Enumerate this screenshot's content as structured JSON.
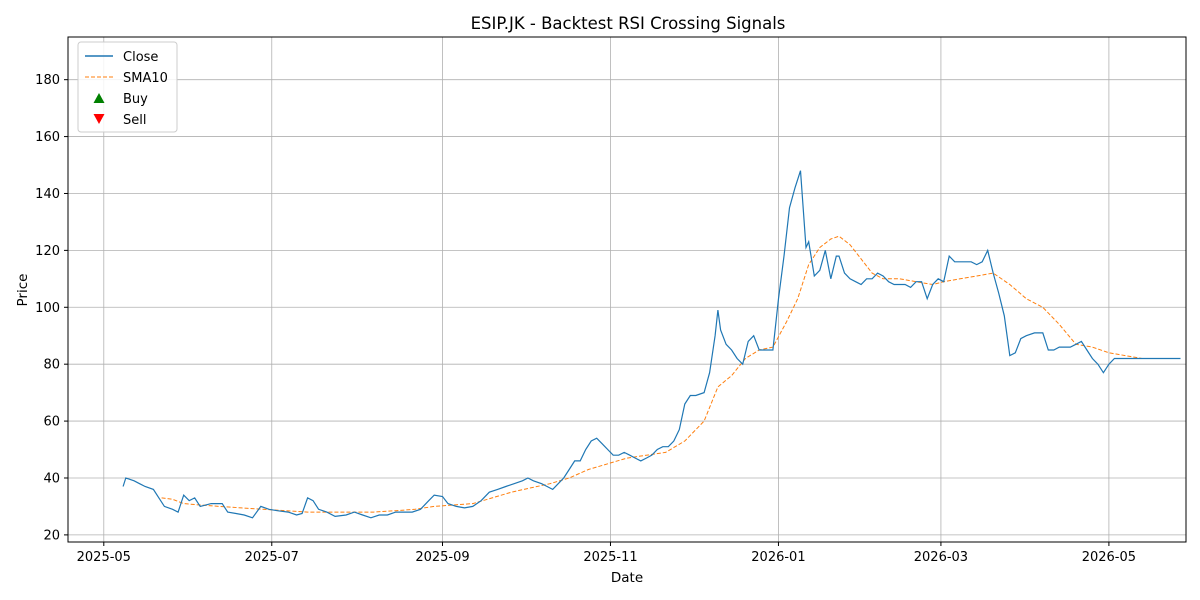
{
  "chart_data": {
    "type": "line",
    "title": "ESIP.JK - Backtest RSI Crossing Signals",
    "xlabel": "Date",
    "ylabel": "Price",
    "xlim": [
      "2025-04-18",
      "2026-05-29"
    ],
    "ylim": [
      17.5,
      195
    ],
    "grid": true,
    "legend_placement": "top-left",
    "x_ticks": [
      "2025-05",
      "2025-07",
      "2025-09",
      "2025-11",
      "2026-01",
      "2026-03",
      "2026-05"
    ],
    "y_ticks": [
      20,
      40,
      60,
      80,
      100,
      120,
      140,
      160,
      180
    ],
    "colors": {
      "close": "#1f77b4",
      "sma": "#ff7f0e",
      "buy": "#008000",
      "sell": "#ff0000"
    },
    "legend": [
      "Close",
      "SMA10",
      "Buy",
      "Sell"
    ],
    "close": [
      [
        "2025-05-08",
        37
      ],
      [
        "2025-05-09",
        40
      ],
      [
        "2025-05-12",
        39
      ],
      [
        "2025-05-14",
        38
      ],
      [
        "2025-05-16",
        37
      ],
      [
        "2025-05-19",
        36
      ],
      [
        "2025-05-21",
        33
      ],
      [
        "2025-05-23",
        30
      ],
      [
        "2025-05-26",
        29
      ],
      [
        "2025-05-28",
        28
      ],
      [
        "2025-05-30",
        34
      ],
      [
        "2025-06-01",
        32
      ],
      [
        "2025-06-03",
        33
      ],
      [
        "2025-06-05",
        30
      ],
      [
        "2025-06-09",
        31
      ],
      [
        "2025-06-13",
        31
      ],
      [
        "2025-06-15",
        28
      ],
      [
        "2025-06-18",
        27.5
      ],
      [
        "2025-06-21",
        27
      ],
      [
        "2025-06-24",
        26
      ],
      [
        "2025-06-27",
        30
      ],
      [
        "2025-06-30",
        29
      ],
      [
        "2025-07-03",
        28.5
      ],
      [
        "2025-07-07",
        28
      ],
      [
        "2025-07-10",
        27
      ],
      [
        "2025-07-12",
        27.5
      ],
      [
        "2025-07-14",
        33
      ],
      [
        "2025-07-16",
        32
      ],
      [
        "2025-07-18",
        29
      ],
      [
        "2025-07-21",
        28
      ],
      [
        "2025-07-24",
        26.5
      ],
      [
        "2025-07-28",
        27
      ],
      [
        "2025-07-31",
        28
      ],
      [
        "2025-08-03",
        27
      ],
      [
        "2025-08-06",
        26
      ],
      [
        "2025-08-09",
        27
      ],
      [
        "2025-08-12",
        27
      ],
      [
        "2025-08-15",
        28
      ],
      [
        "2025-08-18",
        28
      ],
      [
        "2025-08-21",
        28
      ],
      [
        "2025-08-24",
        29
      ],
      [
        "2025-08-27",
        32
      ],
      [
        "2025-08-29",
        34
      ],
      [
        "2025-09-01",
        33.5
      ],
      [
        "2025-09-03",
        31
      ],
      [
        "2025-09-06",
        30
      ],
      [
        "2025-09-09",
        29.5
      ],
      [
        "2025-09-12",
        30
      ],
      [
        "2025-09-15",
        32
      ],
      [
        "2025-09-18",
        35
      ],
      [
        "2025-09-21",
        36
      ],
      [
        "2025-09-24",
        37
      ],
      [
        "2025-09-27",
        38
      ],
      [
        "2025-09-30",
        39
      ],
      [
        "2025-10-02",
        40
      ],
      [
        "2025-10-04",
        39
      ],
      [
        "2025-10-07",
        38
      ],
      [
        "2025-10-09",
        37
      ],
      [
        "2025-10-11",
        36
      ],
      [
        "2025-10-13",
        38
      ],
      [
        "2025-10-15",
        40
      ],
      [
        "2025-10-17",
        43
      ],
      [
        "2025-10-19",
        46
      ],
      [
        "2025-10-21",
        46
      ],
      [
        "2025-10-23",
        50
      ],
      [
        "2025-10-25",
        53
      ],
      [
        "2025-10-27",
        54
      ],
      [
        "2025-10-29",
        52
      ],
      [
        "2025-10-31",
        50
      ],
      [
        "2025-11-02",
        48
      ],
      [
        "2025-11-04",
        48
      ],
      [
        "2025-11-06",
        49
      ],
      [
        "2025-11-08",
        48
      ],
      [
        "2025-11-10",
        47
      ],
      [
        "2025-11-12",
        46
      ],
      [
        "2025-11-14",
        47
      ],
      [
        "2025-11-16",
        48
      ],
      [
        "2025-11-18",
        50
      ],
      [
        "2025-11-20",
        51
      ],
      [
        "2025-11-22",
        51
      ],
      [
        "2025-11-24",
        53
      ],
      [
        "2025-11-26",
        57
      ],
      [
        "2025-11-28",
        66
      ],
      [
        "2025-11-30",
        69
      ],
      [
        "2025-12-02",
        69
      ],
      [
        "2025-12-05",
        70
      ],
      [
        "2025-12-07",
        77
      ],
      [
        "2025-12-09",
        90
      ],
      [
        "2025-12-10",
        99
      ],
      [
        "2025-12-11",
        92
      ],
      [
        "2025-12-13",
        87
      ],
      [
        "2025-12-15",
        85
      ],
      [
        "2025-12-17",
        82
      ],
      [
        "2025-12-19",
        80
      ],
      [
        "2025-12-21",
        88
      ],
      [
        "2025-12-23",
        90
      ],
      [
        "2025-12-25",
        85
      ],
      [
        "2025-12-27",
        85
      ],
      [
        "2025-12-30",
        85
      ],
      [
        "2026-01-01",
        103
      ],
      [
        "2026-01-03",
        118
      ],
      [
        "2026-01-05",
        135
      ],
      [
        "2026-01-07",
        142
      ],
      [
        "2026-01-09",
        148
      ],
      [
        "2026-01-11",
        121
      ],
      [
        "2026-01-12",
        123
      ],
      [
        "2026-01-14",
        111
      ],
      [
        "2026-01-16",
        113
      ],
      [
        "2026-01-18",
        120
      ],
      [
        "2026-01-20",
        110
      ],
      [
        "2026-01-22",
        118
      ],
      [
        "2026-01-23",
        118
      ],
      [
        "2026-01-25",
        112
      ],
      [
        "2026-01-27",
        110
      ],
      [
        "2026-01-29",
        109
      ],
      [
        "2026-01-31",
        108
      ],
      [
        "2026-02-02",
        110
      ],
      [
        "2026-02-04",
        110
      ],
      [
        "2026-02-06",
        112
      ],
      [
        "2026-02-08",
        111
      ],
      [
        "2026-02-10",
        109
      ],
      [
        "2026-02-12",
        108
      ],
      [
        "2026-02-14",
        108
      ],
      [
        "2026-02-16",
        108
      ],
      [
        "2026-02-18",
        107
      ],
      [
        "2026-02-20",
        109
      ],
      [
        "2026-02-22",
        109
      ],
      [
        "2026-02-24",
        103
      ],
      [
        "2026-02-26",
        108
      ],
      [
        "2026-02-28",
        110
      ],
      [
        "2026-03-02",
        109
      ],
      [
        "2026-03-04",
        118
      ],
      [
        "2026-03-06",
        116
      ],
      [
        "2026-03-08",
        116
      ],
      [
        "2026-03-10",
        116
      ],
      [
        "2026-03-12",
        116
      ],
      [
        "2026-03-14",
        115
      ],
      [
        "2026-03-16",
        116
      ],
      [
        "2026-03-18",
        120
      ],
      [
        "2026-03-20",
        112
      ],
      [
        "2026-03-22",
        105
      ],
      [
        "2026-03-24",
        97
      ],
      [
        "2026-03-26",
        83
      ],
      [
        "2026-03-28",
        84
      ],
      [
        "2026-03-30",
        89
      ],
      [
        "2026-04-01",
        90
      ],
      [
        "2026-04-04",
        91
      ],
      [
        "2026-04-07",
        91
      ],
      [
        "2026-04-09",
        85
      ],
      [
        "2026-04-11",
        85
      ],
      [
        "2026-04-13",
        86
      ],
      [
        "2026-04-15",
        86
      ],
      [
        "2026-04-17",
        86
      ],
      [
        "2026-04-19",
        87
      ],
      [
        "2026-04-21",
        88
      ],
      [
        "2026-04-23",
        85
      ],
      [
        "2026-04-25",
        82
      ],
      [
        "2026-04-27",
        80
      ],
      [
        "2026-04-29",
        77
      ],
      [
        "2026-05-01",
        80
      ],
      [
        "2026-05-03",
        82
      ],
      [
        "2026-05-06",
        82
      ],
      [
        "2026-05-09",
        82
      ],
      [
        "2026-05-12",
        82
      ],
      [
        "2026-05-15",
        82
      ],
      [
        "2026-05-18",
        82
      ],
      [
        "2026-05-21",
        82
      ],
      [
        "2026-05-24",
        82
      ],
      [
        "2026-05-27",
        82
      ]
    ],
    "sma10": [
      [
        "2025-05-22",
        33
      ],
      [
        "2025-05-26",
        32.5
      ],
      [
        "2025-05-30",
        31
      ],
      [
        "2025-06-05",
        30.5
      ],
      [
        "2025-06-12",
        30
      ],
      [
        "2025-06-20",
        29.5
      ],
      [
        "2025-06-28",
        29
      ],
      [
        "2025-07-06",
        28.5
      ],
      [
        "2025-07-14",
        28
      ],
      [
        "2025-07-22",
        28
      ],
      [
        "2025-07-30",
        28
      ],
      [
        "2025-08-07",
        28
      ],
      [
        "2025-08-15",
        28.5
      ],
      [
        "2025-08-22",
        29
      ],
      [
        "2025-08-29",
        30
      ],
      [
        "2025-09-05",
        30.5
      ],
      [
        "2025-09-12",
        31
      ],
      [
        "2025-09-19",
        33
      ],
      [
        "2025-09-26",
        35
      ],
      [
        "2025-10-03",
        36.5
      ],
      [
        "2025-10-10",
        38
      ],
      [
        "2025-10-17",
        40
      ],
      [
        "2025-10-24",
        43
      ],
      [
        "2025-10-31",
        45
      ],
      [
        "2025-11-07",
        47
      ],
      [
        "2025-11-14",
        48
      ],
      [
        "2025-11-21",
        49
      ],
      [
        "2025-11-28",
        53
      ],
      [
        "2025-12-05",
        60
      ],
      [
        "2025-12-10",
        72
      ],
      [
        "2025-12-15",
        76
      ],
      [
        "2025-12-20",
        82
      ],
      [
        "2025-12-25",
        85
      ],
      [
        "2025-12-30",
        86
      ],
      [
        "2026-01-04",
        95
      ],
      [
        "2026-01-08",
        103
      ],
      [
        "2026-01-12",
        115
      ],
      [
        "2026-01-16",
        121
      ],
      [
        "2026-01-20",
        124
      ],
      [
        "2026-01-23",
        125
      ],
      [
        "2026-01-27",
        122
      ],
      [
        "2026-01-31",
        117
      ],
      [
        "2026-02-04",
        112
      ],
      [
        "2026-02-08",
        110
      ],
      [
        "2026-02-14",
        110
      ],
      [
        "2026-02-20",
        109
      ],
      [
        "2026-02-26",
        108
      ],
      [
        "2026-03-02",
        109
      ],
      [
        "2026-03-08",
        110
      ],
      [
        "2026-03-14",
        111
      ],
      [
        "2026-03-20",
        112
      ],
      [
        "2026-03-26",
        108
      ],
      [
        "2026-04-01",
        103
      ],
      [
        "2026-04-07",
        100
      ],
      [
        "2026-04-13",
        94
      ],
      [
        "2026-04-19",
        87
      ],
      [
        "2026-04-25",
        86
      ],
      [
        "2026-05-01",
        84
      ],
      [
        "2026-05-07",
        83
      ],
      [
        "2026-05-13",
        82
      ],
      [
        "2026-05-19",
        82
      ],
      [
        "2026-05-25",
        82
      ]
    ],
    "buy_signals": [],
    "sell_signals": []
  }
}
